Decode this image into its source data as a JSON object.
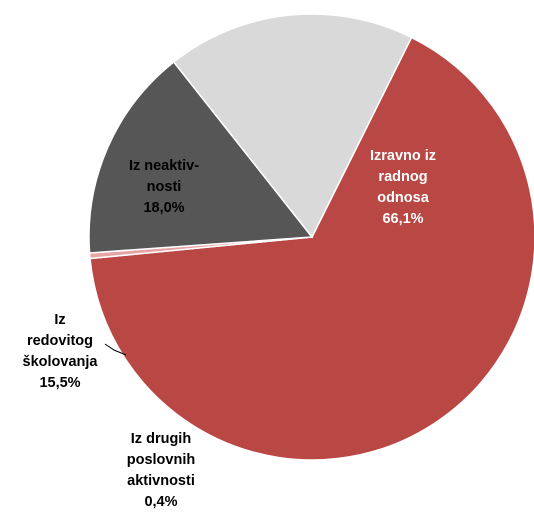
{
  "chart_data": {
    "type": "pie",
    "start_angle_deg": -63.5,
    "direction": "clockwise",
    "slices": [
      {
        "label_lines": [
          "Izravno iz",
          "radnog",
          "odnosa"
        ],
        "value": 66.1,
        "value_label": "66,1%",
        "color": "#b94744",
        "label_color": "#ffffff"
      },
      {
        "label_lines": [
          "Iz drugih",
          "poslovnih",
          "aktivnosti"
        ],
        "value": 0.4,
        "value_label": "0,4%",
        "color": "#e6a5a4",
        "label_color": "#000000"
      },
      {
        "label_lines": [
          "Iz",
          "redovitog",
          "školovanja"
        ],
        "value": 15.5,
        "value_label": "15,5%",
        "color": "#565656",
        "label_color": "#000000"
      },
      {
        "label_lines": [
          "Iz neaktiv-",
          "nosti"
        ],
        "value": 18.0,
        "value_label": "18,0%",
        "color": "#d9d9d9",
        "label_color": "#000000"
      }
    ]
  }
}
